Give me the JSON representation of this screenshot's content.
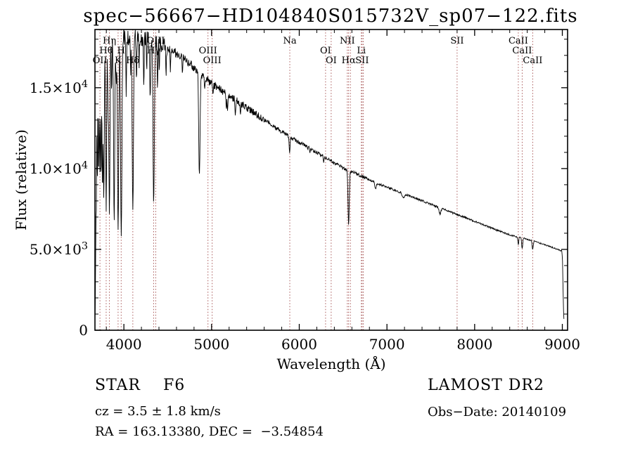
{
  "annotations": {
    "class_line": "STAR    F6",
    "survey": "LAMOST DR2",
    "cz_line": "cz = 3.5 ± 1.8 km/s",
    "obs_date": "Obs−Date: 20140109",
    "radec_line": "RA = 163.13380, DEC =  −3.54854"
  },
  "chart_data": {
    "type": "line",
    "title": "spec−56667−HD104840S015732V_sp07−122.fits",
    "xlabel": "Wavelength (Å)",
    "ylabel": "Flux (relative)",
    "xlim": [
      3670,
      9060
    ],
    "ylim": [
      0,
      18600
    ],
    "grid": false,
    "line_color": "#000000",
    "marker_color": "#a04848",
    "x_ticks": [
      {
        "value": 4000,
        "label": "4000"
      },
      {
        "value": 5000,
        "label": "5000"
      },
      {
        "value": 6000,
        "label": "6000"
      },
      {
        "value": 7000,
        "label": "7000"
      },
      {
        "value": 8000,
        "label": "8000"
      },
      {
        "value": 9000,
        "label": "9000"
      }
    ],
    "y_ticks": [
      {
        "value": 0,
        "label": "0"
      },
      {
        "value": 5000,
        "label": "5.0×10^3"
      },
      {
        "value": 10000,
        "label": "1.0×10^4"
      },
      {
        "value": 15000,
        "label": "1.5×10^4"
      }
    ],
    "x_minor_step": 200,
    "y_minor_step": 1000,
    "spectral_lines": [
      {
        "label": "OII",
        "wavelength": 3727,
        "row": 3
      },
      {
        "label": "Hθ",
        "wavelength": 3798,
        "row": 2
      },
      {
        "label": "Hη",
        "wavelength": 3835,
        "row": 1
      },
      {
        "label": "K",
        "wavelength": 3934,
        "row": 3
      },
      {
        "label": "H",
        "wavelength": 3969,
        "row": 2
      },
      {
        "label": "Hδ",
        "wavelength": 4102,
        "row": 3
      },
      {
        "label": "Hγ",
        "wavelength": 4340,
        "row": 2
      },
      {
        "label": "OIII",
        "wavelength": 4363,
        "row": 1
      },
      {
        "label": "OIII",
        "wavelength": 4959,
        "row": 2
      },
      {
        "label": "OIII",
        "wavelength": 5007,
        "row": 3
      },
      {
        "label": "Na",
        "wavelength": 5892,
        "row": 1
      },
      {
        "label": "OI",
        "wavelength": 6300,
        "row": 2
      },
      {
        "label": "OI",
        "wavelength": 6364,
        "row": 3
      },
      {
        "label": "NII",
        "wavelength": 6548,
        "row": 1
      },
      {
        "label": "Hα",
        "wavelength": 6563,
        "row": 3
      },
      {
        "label": "",
        "wavelength": 6583,
        "row": 1
      },
      {
        "label": "Li",
        "wavelength": 6708,
        "row": 2
      },
      {
        "label": "SII",
        "wavelength": 6717,
        "row": 3
      },
      {
        "label": "",
        "wavelength": 6731,
        "row": 3
      },
      {
        "label": "SII",
        "wavelength": 7800,
        "row": 1
      },
      {
        "label": "CaII",
        "wavelength": 8498,
        "row": 1
      },
      {
        "label": "CaII",
        "wavelength": 8542,
        "row": 2
      },
      {
        "label": "CaII",
        "wavelength": 8662,
        "row": 3
      }
    ],
    "continuum": [
      [
        3670,
        700
      ],
      [
        3676,
        3500
      ],
      [
        3682,
        9000
      ],
      [
        3690,
        13500
      ],
      [
        3700,
        15300
      ],
      [
        3715,
        16100
      ],
      [
        3735,
        16700
      ],
      [
        3765,
        17100
      ],
      [
        3800,
        17400
      ],
      [
        3850,
        17700
      ],
      [
        3900,
        17900
      ],
      [
        3960,
        18050
      ],
      [
        4030,
        18150
      ],
      [
        4100,
        18200
      ],
      [
        4180,
        18150
      ],
      [
        4260,
        18000
      ],
      [
        4340,
        17850
      ],
      [
        4420,
        17650
      ],
      [
        4500,
        17450
      ],
      [
        4580,
        17200
      ],
      [
        4660,
        16900
      ],
      [
        4740,
        16550
      ],
      [
        4820,
        16150
      ],
      [
        4900,
        15750
      ],
      [
        4980,
        15350
      ],
      [
        5060,
        15050
      ],
      [
        5140,
        14750
      ],
      [
        5220,
        14450
      ],
      [
        5300,
        14150
      ],
      [
        5380,
        13850
      ],
      [
        5460,
        13550
      ],
      [
        5540,
        13250
      ],
      [
        5620,
        12950
      ],
      [
        5700,
        12650
      ],
      [
        5780,
        12350
      ],
      [
        5860,
        12050
      ],
      [
        5940,
        11800
      ],
      [
        6020,
        11550
      ],
      [
        6100,
        11300
      ],
      [
        6180,
        11050
      ],
      [
        6260,
        10800
      ],
      [
        6340,
        10550
      ],
      [
        6420,
        10300
      ],
      [
        6500,
        10050
      ],
      [
        6580,
        9850
      ],
      [
        6660,
        9650
      ],
      [
        6740,
        9450
      ],
      [
        6820,
        9250
      ],
      [
        6900,
        9050
      ],
      [
        6980,
        8900
      ],
      [
        7060,
        8730
      ],
      [
        7140,
        8560
      ],
      [
        7220,
        8390
      ],
      [
        7300,
        8220
      ],
      [
        7380,
        8050
      ],
      [
        7460,
        7880
      ],
      [
        7540,
        7710
      ],
      [
        7620,
        7540
      ],
      [
        7700,
        7370
      ],
      [
        7780,
        7200
      ],
      [
        7860,
        7030
      ],
      [
        7940,
        6860
      ],
      [
        8020,
        6690
      ],
      [
        8100,
        6520
      ],
      [
        8180,
        6350
      ],
      [
        8260,
        6180
      ],
      [
        8340,
        6010
      ],
      [
        8420,
        5870
      ],
      [
        8500,
        5760
      ],
      [
        8580,
        5650
      ],
      [
        8660,
        5540
      ],
      [
        8740,
        5400
      ],
      [
        8820,
        5250
      ],
      [
        8900,
        5100
      ],
      [
        8950,
        5000
      ],
      [
        8995,
        4900
      ],
      [
        9002,
        4300
      ],
      [
        9008,
        2600
      ],
      [
        9014,
        1200
      ],
      [
        9018,
        700
      ]
    ],
    "absorption_lines": [
      [
        3674,
        0.3,
        3
      ],
      [
        3685,
        0.35,
        3
      ],
      [
        3697,
        0.38,
        3.5
      ],
      [
        3712,
        0.42,
        4
      ],
      [
        3726,
        0.4,
        4
      ],
      [
        3740,
        0.46,
        4
      ],
      [
        3756,
        0.5,
        4.5
      ],
      [
        3771,
        0.54,
        5
      ],
      [
        3798,
        0.58,
        5.5
      ],
      [
        3820,
        0.22,
        4
      ],
      [
        3835,
        0.6,
        6
      ],
      [
        3860,
        0.18,
        4
      ],
      [
        3889,
        0.62,
        6.5
      ],
      [
        3912,
        0.15,
        3.5
      ],
      [
        3934,
        0.66,
        7
      ],
      [
        3970,
        0.68,
        7.5
      ],
      [
        4026,
        0.2,
        4
      ],
      [
        4077,
        0.13,
        3.5
      ],
      [
        4102,
        0.6,
        7.5
      ],
      [
        4144,
        0.16,
        4
      ],
      [
        4173,
        0.1,
        3.5
      ],
      [
        4227,
        0.15,
        4
      ],
      [
        4260,
        0.1,
        3.5
      ],
      [
        4300,
        0.18,
        5
      ],
      [
        4340,
        0.56,
        7.5
      ],
      [
        4383,
        0.15,
        4
      ],
      [
        4405,
        0.1,
        3.5
      ],
      [
        4481,
        0.09,
        3.5
      ],
      [
        4531,
        0.07,
        3.5
      ],
      [
        4668,
        0.06,
        3.5
      ],
      [
        4861,
        0.4,
        7.5
      ],
      [
        4921,
        0.06,
        3.5
      ],
      [
        5015,
        0.05,
        3.5
      ],
      [
        5167,
        0.07,
        4
      ],
      [
        5183,
        0.08,
        4
      ],
      [
        5270,
        0.06,
        4
      ],
      [
        5328,
        0.05,
        3.5
      ],
      [
        5890,
        0.09,
        5
      ],
      [
        6122,
        0.03,
        4
      ],
      [
        6280,
        0.03,
        5
      ],
      [
        6563,
        0.34,
        7
      ],
      [
        6869,
        0.04,
        8
      ],
      [
        7186,
        0.03,
        12
      ],
      [
        7605,
        0.05,
        10
      ],
      [
        8498,
        0.08,
        5
      ],
      [
        8542,
        0.11,
        6
      ],
      [
        8662,
        0.1,
        6
      ]
    ],
    "noise_profile": [
      [
        4500,
        0.03
      ],
      [
        5600,
        0.016
      ],
      [
        6800,
        0.011
      ],
      [
        10000,
        0.008
      ]
    ]
  }
}
